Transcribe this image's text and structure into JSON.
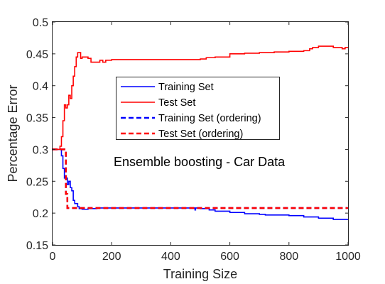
{
  "chart_data": {
    "type": "line",
    "title": "",
    "xlabel": "Training Size",
    "ylabel": "Percentage Error",
    "xlim": [
      0,
      1000
    ],
    "ylim": [
      0.15,
      0.5
    ],
    "xticks": [
      0,
      200,
      400,
      600,
      800,
      1000
    ],
    "yticks": [
      0.15,
      0.2,
      0.25,
      0.3,
      0.35,
      0.4,
      0.45,
      0.5
    ],
    "xtick_labels": [
      "0",
      "200",
      "400",
      "600",
      "800",
      "1000"
    ],
    "ytick_labels": [
      "0.15",
      "0.2",
      "0.25",
      "0.3",
      "0.35",
      "0.4",
      "0.45",
      "0.5"
    ],
    "grid": false,
    "legend_position": "center-left",
    "annotation": "Ensemble boosting - Car Data",
    "series": [
      {
        "name": "Training Set",
        "color": "#0000ff",
        "style": "solid",
        "x": [
          0,
          20,
          30,
          35,
          40,
          50,
          55,
          60,
          65,
          70,
          75,
          80,
          85,
          90,
          100,
          120,
          150,
          180,
          200,
          300,
          400,
          480,
          482,
          484,
          500,
          530,
          550,
          600,
          650,
          700,
          720,
          800,
          850,
          900,
          950,
          1000
        ],
        "y": [
          0.3,
          0.3,
          0.29,
          0.27,
          0.255,
          0.245,
          0.25,
          0.24,
          0.235,
          0.22,
          0.215,
          0.215,
          0.21,
          0.207,
          0.206,
          0.207,
          0.208,
          0.208,
          0.208,
          0.208,
          0.208,
          0.208,
          0.205,
          0.208,
          0.207,
          0.205,
          0.203,
          0.201,
          0.199,
          0.198,
          0.197,
          0.196,
          0.194,
          0.192,
          0.19,
          0.19
        ]
      },
      {
        "name": "Test Set",
        "color": "#ff0000",
        "style": "solid",
        "x": [
          0,
          20,
          25,
          30,
          35,
          40,
          45,
          50,
          55,
          60,
          65,
          70,
          75,
          80,
          85,
          90,
          95,
          100,
          110,
          120,
          130,
          140,
          150,
          160,
          170,
          180,
          200,
          300,
          400,
          500,
          520,
          550,
          600,
          650,
          700,
          750,
          800,
          850,
          870,
          880,
          900,
          950,
          980,
          990,
          1000
        ],
        "y": [
          0.3,
          0.3,
          0.305,
          0.32,
          0.345,
          0.37,
          0.365,
          0.37,
          0.385,
          0.38,
          0.4,
          0.415,
          0.43,
          0.445,
          0.452,
          0.452,
          0.443,
          0.445,
          0.445,
          0.443,
          0.437,
          0.437,
          0.437,
          0.44,
          0.437,
          0.44,
          0.441,
          0.441,
          0.441,
          0.442,
          0.444,
          0.445,
          0.45,
          0.451,
          0.452,
          0.453,
          0.454,
          0.455,
          0.458,
          0.46,
          0.462,
          0.46,
          0.458,
          0.46,
          0.46
        ]
      },
      {
        "name": "Training Set (ordering)",
        "color": "#0000ff",
        "style": "dashed",
        "x": [
          0,
          40,
          45,
          50,
          1000
        ],
        "y": [
          0.3,
          0.3,
          0.23,
          0.208,
          0.208
        ]
      },
      {
        "name": "Test Set (ordering)",
        "color": "#ff0000",
        "style": "dashed",
        "x": [
          0,
          40,
          45,
          50,
          1000
        ],
        "y": [
          0.3,
          0.3,
          0.23,
          0.208,
          0.208
        ]
      }
    ]
  }
}
